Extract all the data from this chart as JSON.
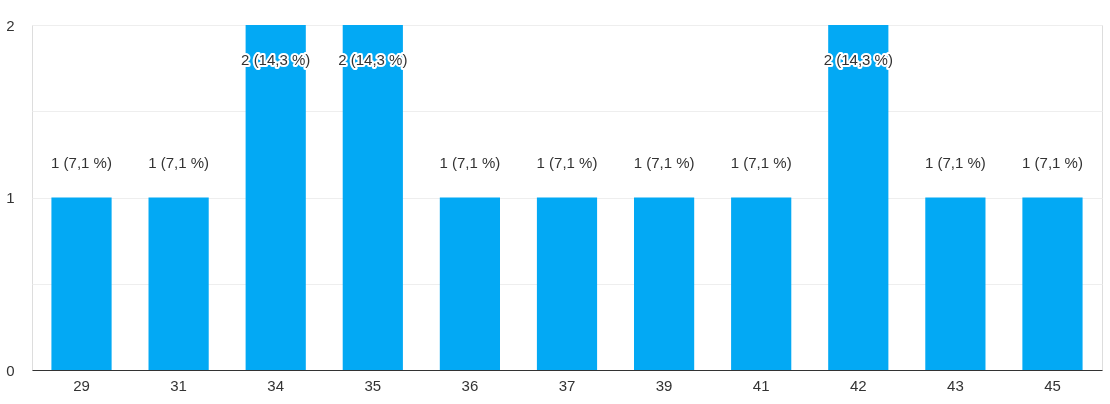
{
  "chart_data": {
    "type": "bar",
    "categories": [
      "29",
      "31",
      "34",
      "35",
      "36",
      "37",
      "39",
      "41",
      "42",
      "43",
      "45"
    ],
    "values": [
      1,
      1,
      2,
      2,
      1,
      1,
      1,
      1,
      2,
      1,
      1
    ],
    "value_labels": [
      "1 (7,1 %)",
      "1 (7,1 %)",
      "2 (14,3 %)",
      "2 (14,3 %)",
      "1 (7,1 %)",
      "1 (7,1 %)",
      "1 (7,1 %)",
      "1 (7,1 %)",
      "2 (14,3 %)",
      "1 (7,1 %)",
      "1 (7,1 %)"
    ],
    "color": "#03a9f4",
    "ylim": [
      0,
      2
    ],
    "yticks": [
      0,
      {
        "value": 0.5,
        "label": null
      },
      1,
      {
        "value": 1.5,
        "label": null
      },
      2
    ],
    "grid": "y"
  }
}
